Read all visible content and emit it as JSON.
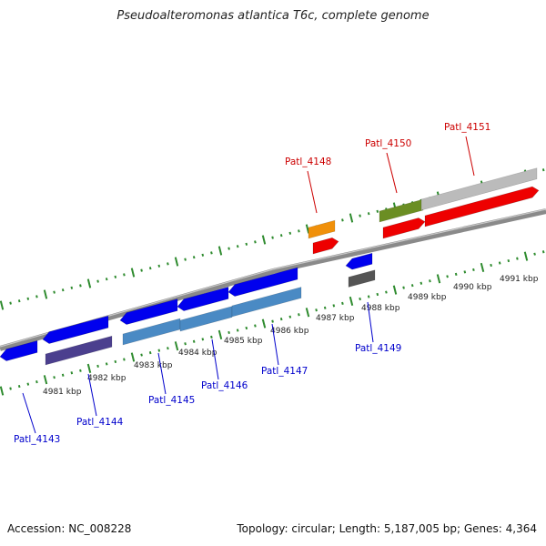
{
  "title": "Pseudoalteromonas atlantica T6c, complete genome",
  "footer": {
    "accession": "Accession: NC_008228",
    "topology": "Topology: circular; Length: 5,187,005 bp; Genes: 4,364"
  },
  "colors": {
    "backbone": "#8a8a8a",
    "tick": "#2e8b2e",
    "label_forward": "#cc0000",
    "label_reverse": "#0000cc"
  },
  "scale_ticks": [
    "4981 kbp",
    "4982 kbp",
    "4983 kbp",
    "4984 kbp",
    "4985 kbp",
    "4986 kbp",
    "4987 kbp",
    "4988 kbp",
    "4989 kbp",
    "4990 kbp",
    "4991 kbp"
  ],
  "genes": [
    {
      "id": "g4143",
      "label": "Patl_4143",
      "strand": "reverse",
      "color": "#0000ee",
      "sub_color": "",
      "labeled": true
    },
    {
      "id": "g4144",
      "label": "Patl_4144",
      "strand": "reverse",
      "color": "#0000ee",
      "sub_color": "#4b3f8e",
      "labeled": true
    },
    {
      "id": "g4145",
      "label": "Patl_4145",
      "strand": "reverse",
      "color": "#0000ee",
      "sub_color": "#4a8ac4",
      "labeled": true
    },
    {
      "id": "g4146",
      "label": "Patl_4146",
      "strand": "reverse",
      "color": "#0000ee",
      "sub_color": "#4a8ac4",
      "labeled": true
    },
    {
      "id": "g4147",
      "label": "Patl_4147",
      "strand": "reverse",
      "color": "#0000ee",
      "sub_color": "#4a8ac4",
      "labeled": true
    },
    {
      "id": "g4148",
      "label": "Patl_4148",
      "strand": "forward",
      "color": "#ee0000",
      "sub_color": "#f0900a",
      "labeled": true
    },
    {
      "id": "g4149",
      "label": "Patl_4149",
      "strand": "reverse",
      "color": "#0000ee",
      "sub_color": "#555555",
      "labeled": true
    },
    {
      "id": "g4150",
      "label": "Patl_4150",
      "strand": "forward",
      "color": "#ee0000",
      "sub_color": "#6b8e23",
      "labeled": true
    },
    {
      "id": "g4151",
      "label": "Patl_4151",
      "strand": "forward",
      "color": "#ee0000",
      "sub_color": "#bbbbbb",
      "labeled": true
    }
  ]
}
